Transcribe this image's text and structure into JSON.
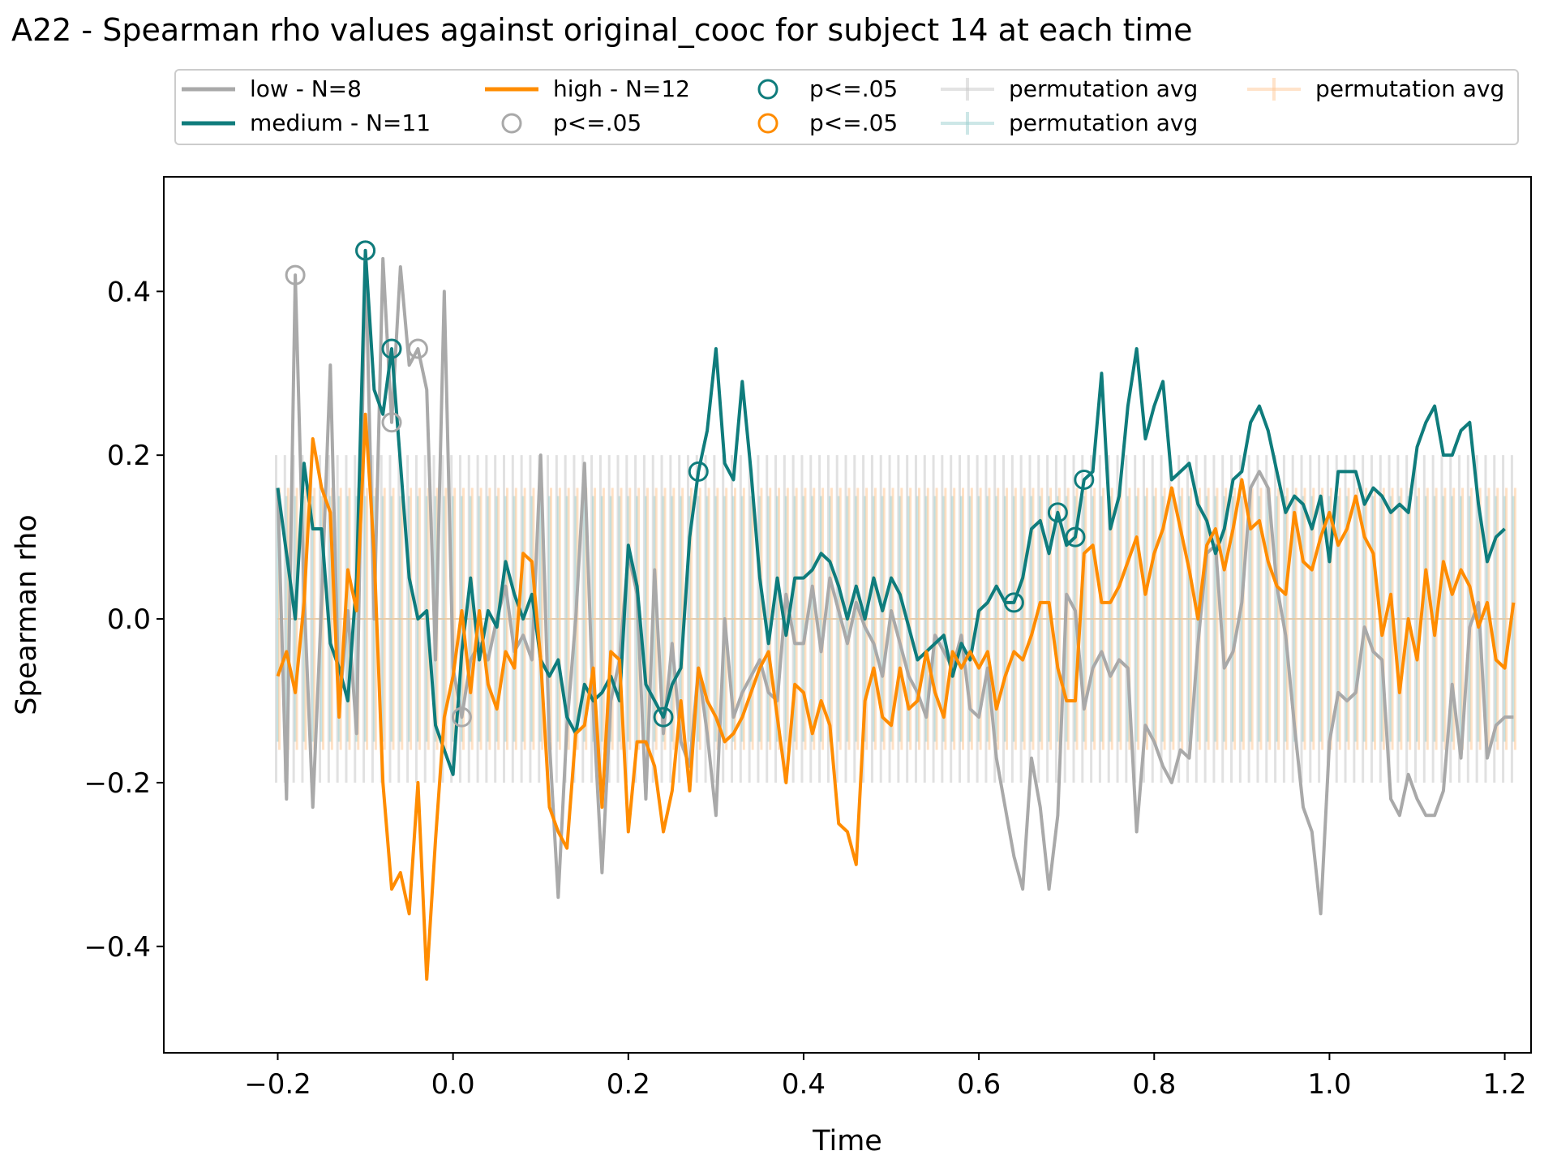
{
  "chart_data": {
    "type": "line",
    "title": "A22 - Spearman rho values against original_cooc for subject 14 at each time",
    "xlabel": "Time",
    "ylabel": "Spearman rho",
    "xlim": [
      -0.33,
      1.23
    ],
    "ylim": [
      -0.53,
      0.54
    ],
    "xticks": [
      -0.2,
      0.0,
      0.2,
      0.4,
      0.6,
      0.8,
      1.0,
      1.2
    ],
    "xtick_labels": [
      "−0.2",
      "0.0",
      "0.2",
      "0.4",
      "0.6",
      "0.8",
      "1.0",
      "1.2"
    ],
    "yticks": [
      -0.4,
      -0.2,
      0.0,
      0.2,
      0.4
    ],
    "ytick_labels": [
      "−0.4",
      "−0.2",
      "0.0",
      "0.2",
      "0.4"
    ],
    "legend_position": "top-center",
    "legend": [
      {
        "label": "low - N=8",
        "kind": "line",
        "color": "#a9a9a9"
      },
      {
        "label": "medium - N=11",
        "kind": "line",
        "color": "#0f7c7c"
      },
      {
        "label": "high - N=12",
        "kind": "line",
        "color": "#ff8c00"
      },
      {
        "label": "p<=.05",
        "kind": "circle",
        "color": "#a9a9a9"
      },
      {
        "label": "p<=.05",
        "kind": "circle",
        "color": "#0f7c7c"
      },
      {
        "label": "p<=.05",
        "kind": "circle",
        "color": "#ff8c00"
      },
      {
        "label": "permutation avg",
        "kind": "errorbar",
        "color": "#c8c8c8"
      },
      {
        "label": "permutation avg",
        "kind": "errorbar",
        "color": "#9ccfcf"
      },
      {
        "label": "permutation avg",
        "kind": "errorbar",
        "color": "#ffc896"
      }
    ],
    "x_start": -0.2,
    "x_step": 0.01,
    "series": [
      {
        "name": "low - N=8",
        "color": "#a9a9a9",
        "values": [
          0.16,
          -0.22,
          0.42,
          0.03,
          -0.23,
          0.02,
          0.31,
          -0.11,
          0.01,
          -0.14,
          0.45,
          0.0,
          0.44,
          0.24,
          0.43,
          0.31,
          0.33,
          0.28,
          -0.05,
          0.4,
          -0.06,
          -0.12,
          -0.05,
          -0.03,
          -0.05,
          0.0,
          0.04,
          -0.04,
          -0.02,
          -0.05,
          0.2,
          -0.15,
          -0.34,
          -0.13,
          0.0,
          0.19,
          -0.11,
          -0.31,
          -0.1,
          -0.05,
          0.08,
          0.03,
          -0.22,
          0.06,
          -0.14,
          -0.03,
          -0.15,
          -0.18,
          -0.06,
          -0.14,
          -0.24,
          0.0,
          -0.12,
          -0.09,
          -0.07,
          -0.05,
          -0.09,
          -0.1,
          0.03,
          -0.03,
          -0.03,
          0.04,
          -0.04,
          0.05,
          0.01,
          -0.03,
          0.02,
          -0.01,
          -0.03,
          -0.07,
          0.01,
          -0.03,
          -0.07,
          -0.09,
          -0.12,
          -0.02,
          -0.04,
          -0.06,
          -0.02,
          -0.11,
          -0.12,
          -0.06,
          -0.17,
          -0.23,
          -0.29,
          -0.33,
          -0.17,
          -0.23,
          -0.33,
          -0.24,
          0.03,
          0.01,
          -0.11,
          -0.06,
          -0.04,
          -0.07,
          -0.05,
          -0.06,
          -0.26,
          -0.13,
          -0.15,
          -0.18,
          -0.2,
          -0.16,
          -0.17,
          -0.03,
          0.08,
          0.09,
          -0.06,
          -0.04,
          0.02,
          0.16,
          0.18,
          0.16,
          0.04,
          -0.02,
          -0.13,
          -0.23,
          -0.26,
          -0.36,
          -0.15,
          -0.09,
          -0.1,
          -0.09,
          -0.01,
          -0.04,
          -0.05,
          -0.22,
          -0.24,
          -0.19,
          -0.22,
          -0.24,
          -0.24,
          -0.21,
          -0.08,
          -0.17,
          -0.01,
          0.02,
          -0.17,
          -0.13,
          -0.12,
          -0.12
        ]
      },
      {
        "name": "medium - N=11",
        "color": "#0f7c7c",
        "values": [
          0.16,
          0.08,
          0.0,
          0.19,
          0.11,
          0.11,
          -0.03,
          -0.06,
          -0.1,
          0.05,
          0.45,
          0.28,
          0.25,
          0.33,
          0.19,
          0.05,
          0.0,
          0.01,
          -0.13,
          -0.16,
          -0.19,
          -0.04,
          0.05,
          -0.05,
          0.01,
          -0.01,
          0.07,
          0.03,
          0.0,
          0.03,
          -0.05,
          -0.07,
          -0.05,
          -0.12,
          -0.14,
          -0.08,
          -0.1,
          -0.09,
          -0.07,
          -0.1,
          0.09,
          0.04,
          -0.08,
          -0.1,
          -0.12,
          -0.08,
          -0.06,
          0.1,
          0.18,
          0.23,
          0.33,
          0.19,
          0.17,
          0.29,
          0.18,
          0.05,
          -0.03,
          0.05,
          -0.02,
          0.05,
          0.05,
          0.06,
          0.08,
          0.07,
          0.04,
          0.0,
          0.04,
          0.0,
          0.05,
          0.01,
          0.05,
          0.03,
          -0.01,
          -0.05,
          -0.04,
          -0.03,
          -0.02,
          -0.07,
          -0.03,
          -0.05,
          0.01,
          0.02,
          0.04,
          0.02,
          0.02,
          0.05,
          0.11,
          0.12,
          0.08,
          0.13,
          0.09,
          0.1,
          0.17,
          0.18,
          0.3,
          0.11,
          0.15,
          0.26,
          0.33,
          0.22,
          0.26,
          0.29,
          0.17,
          0.18,
          0.19,
          0.14,
          0.12,
          0.08,
          0.11,
          0.17,
          0.18,
          0.24,
          0.26,
          0.23,
          0.18,
          0.13,
          0.15,
          0.14,
          0.11,
          0.15,
          0.07,
          0.18,
          0.18,
          0.18,
          0.14,
          0.16,
          0.15,
          0.13,
          0.14,
          0.13,
          0.21,
          0.24,
          0.26,
          0.2,
          0.2,
          0.23,
          0.24,
          0.14,
          0.07,
          0.1,
          0.11
        ]
      },
      {
        "name": "high - N=12",
        "color": "#ff8c00",
        "values": [
          -0.07,
          -0.04,
          -0.09,
          0.02,
          0.22,
          0.16,
          0.13,
          -0.12,
          0.06,
          0.01,
          0.25,
          0.08,
          -0.2,
          -0.33,
          -0.31,
          -0.36,
          -0.2,
          -0.44,
          -0.27,
          -0.12,
          -0.07,
          0.01,
          -0.09,
          0.01,
          -0.08,
          -0.11,
          -0.04,
          -0.06,
          0.08,
          0.07,
          -0.05,
          -0.23,
          -0.26,
          -0.28,
          -0.14,
          -0.13,
          -0.06,
          -0.23,
          -0.04,
          -0.05,
          -0.26,
          -0.15,
          -0.15,
          -0.18,
          -0.26,
          -0.21,
          -0.1,
          -0.21,
          -0.06,
          -0.1,
          -0.12,
          -0.15,
          -0.14,
          -0.12,
          -0.09,
          -0.06,
          -0.04,
          -0.12,
          -0.2,
          -0.08,
          -0.09,
          -0.14,
          -0.1,
          -0.13,
          -0.25,
          -0.26,
          -0.3,
          -0.1,
          -0.06,
          -0.12,
          -0.13,
          -0.06,
          -0.11,
          -0.1,
          -0.04,
          -0.09,
          -0.12,
          -0.04,
          -0.06,
          -0.04,
          -0.06,
          -0.04,
          -0.11,
          -0.07,
          -0.04,
          -0.05,
          -0.02,
          0.02,
          0.02,
          -0.06,
          -0.1,
          -0.1,
          0.08,
          0.09,
          0.02,
          0.02,
          0.04,
          0.07,
          0.1,
          0.03,
          0.08,
          0.11,
          0.16,
          0.11,
          0.06,
          0.0,
          0.09,
          0.11,
          0.06,
          0.11,
          0.17,
          0.11,
          0.12,
          0.07,
          0.04,
          0.03,
          0.13,
          0.07,
          0.06,
          0.1,
          0.13,
          0.09,
          0.11,
          0.15,
          0.1,
          0.08,
          -0.02,
          0.03,
          -0.09,
          0.0,
          -0.05,
          0.06,
          -0.02,
          0.07,
          0.03,
          0.06,
          0.04,
          -0.01,
          0.02,
          -0.05,
          -0.06,
          0.02
        ]
      }
    ],
    "significant_points": [
      {
        "series": "low - N=8",
        "x": [
          -0.18,
          -0.1,
          -0.07,
          -0.04,
          0.01
        ]
      },
      {
        "series": "medium - N=11",
        "x": [
          -0.1,
          -0.07,
          0.24,
          0.28,
          0.64,
          0.69,
          0.71,
          0.72
        ]
      },
      {
        "series": "high - N=12",
        "x": []
      }
    ],
    "permutation_avg": [
      {
        "color": "#c8c8c8",
        "mean": 0.0,
        "halfwidth": 0.2
      },
      {
        "color": "#9ccfcf",
        "mean": 0.0,
        "halfwidth": 0.15
      },
      {
        "color": "#ffc896",
        "mean": 0.0,
        "halfwidth": 0.16
      }
    ]
  }
}
